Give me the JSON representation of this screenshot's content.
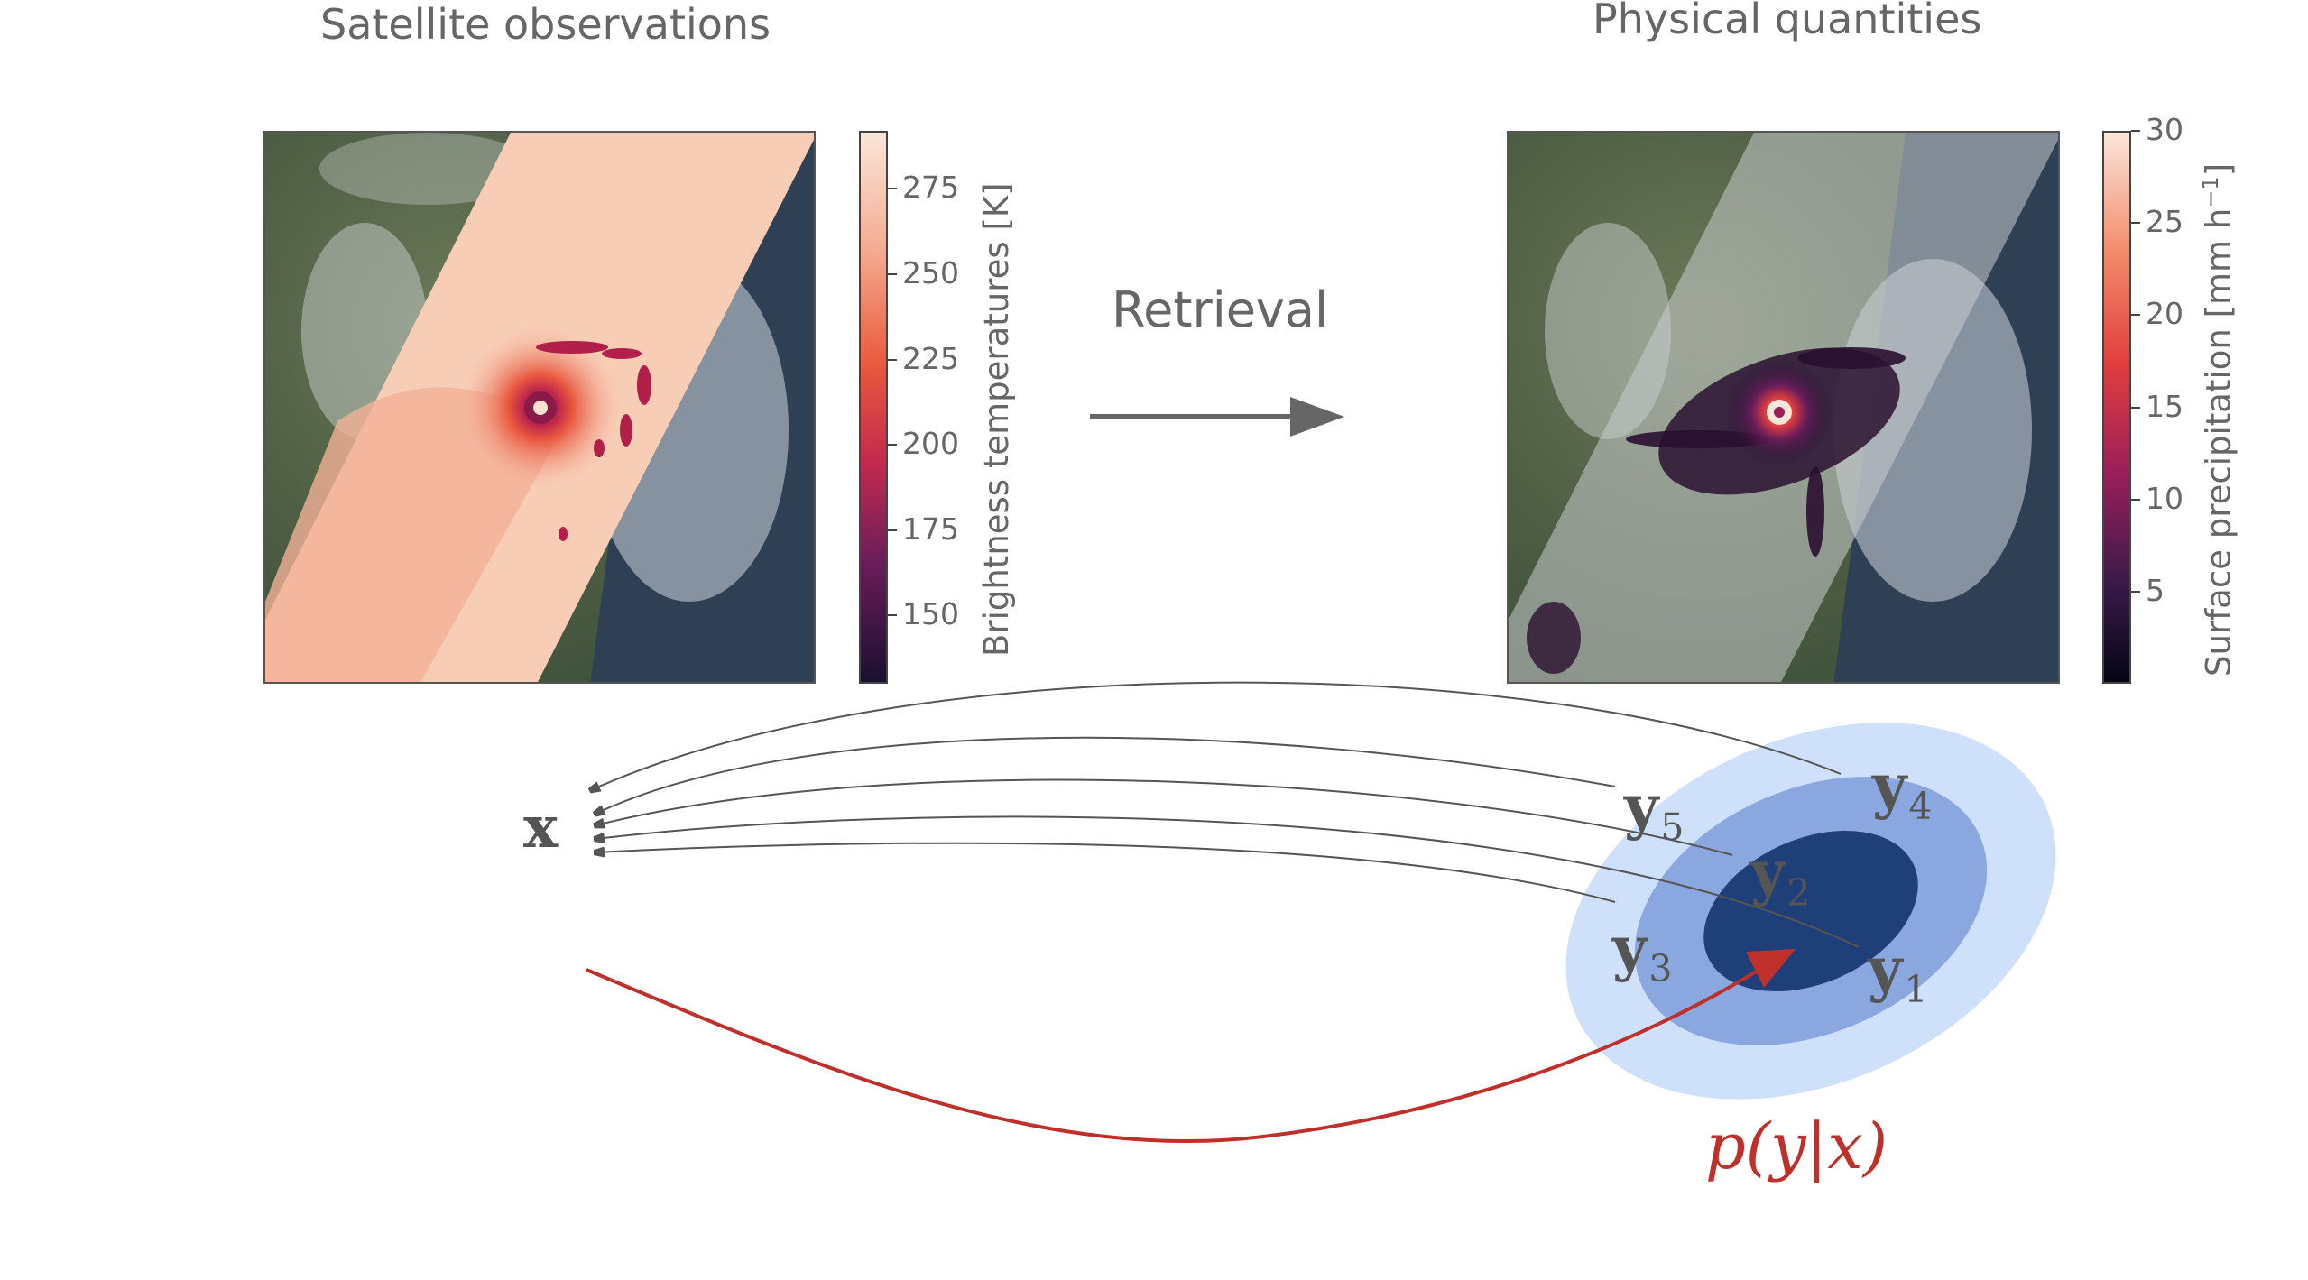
{
  "left_panel": {
    "title": "Satellite observations",
    "colorbar": {
      "label": "Brightness temperatures [K]",
      "ticks": [
        "275",
        "250",
        "225",
        "200",
        "175",
        "150"
      ],
      "range": [
        130,
        292
      ],
      "colormap": [
        "#1a0f2e",
        "#6b1d5a",
        "#c42a4e",
        "#ea5a3c",
        "#f4a98e",
        "#fbe6da"
      ]
    }
  },
  "center": {
    "arrow_label": "Retrieval"
  },
  "right_panel": {
    "title": "Physical quantities",
    "colorbar": {
      "label": "Surface precipitation [mm h",
      "label_exponent": "−1",
      "label_close": "]",
      "ticks": [
        "30",
        "25",
        "20",
        "15",
        "10",
        "5"
      ],
      "range": [
        0,
        30
      ],
      "colormap": [
        "#050515",
        "#3a1a4a",
        "#9a1f5a",
        "#e23e3e",
        "#f28a6a",
        "#fbe6da"
      ]
    }
  },
  "diagram": {
    "input_symbol": "x",
    "outputs": [
      {
        "symbol": "y",
        "index": "5"
      },
      {
        "symbol": "y",
        "index": "4"
      },
      {
        "symbol": "y",
        "index": "2"
      },
      {
        "symbol": "y",
        "index": "3"
      },
      {
        "symbol": "y",
        "index": "1"
      }
    ],
    "distribution_label": "p(y|x)",
    "colors": {
      "outer": "#cfe0fb",
      "middle": "#8aa8df",
      "inner": "#1f3f78",
      "red_arrow": "#c0302a",
      "gray_arrow": "#555555"
    }
  }
}
